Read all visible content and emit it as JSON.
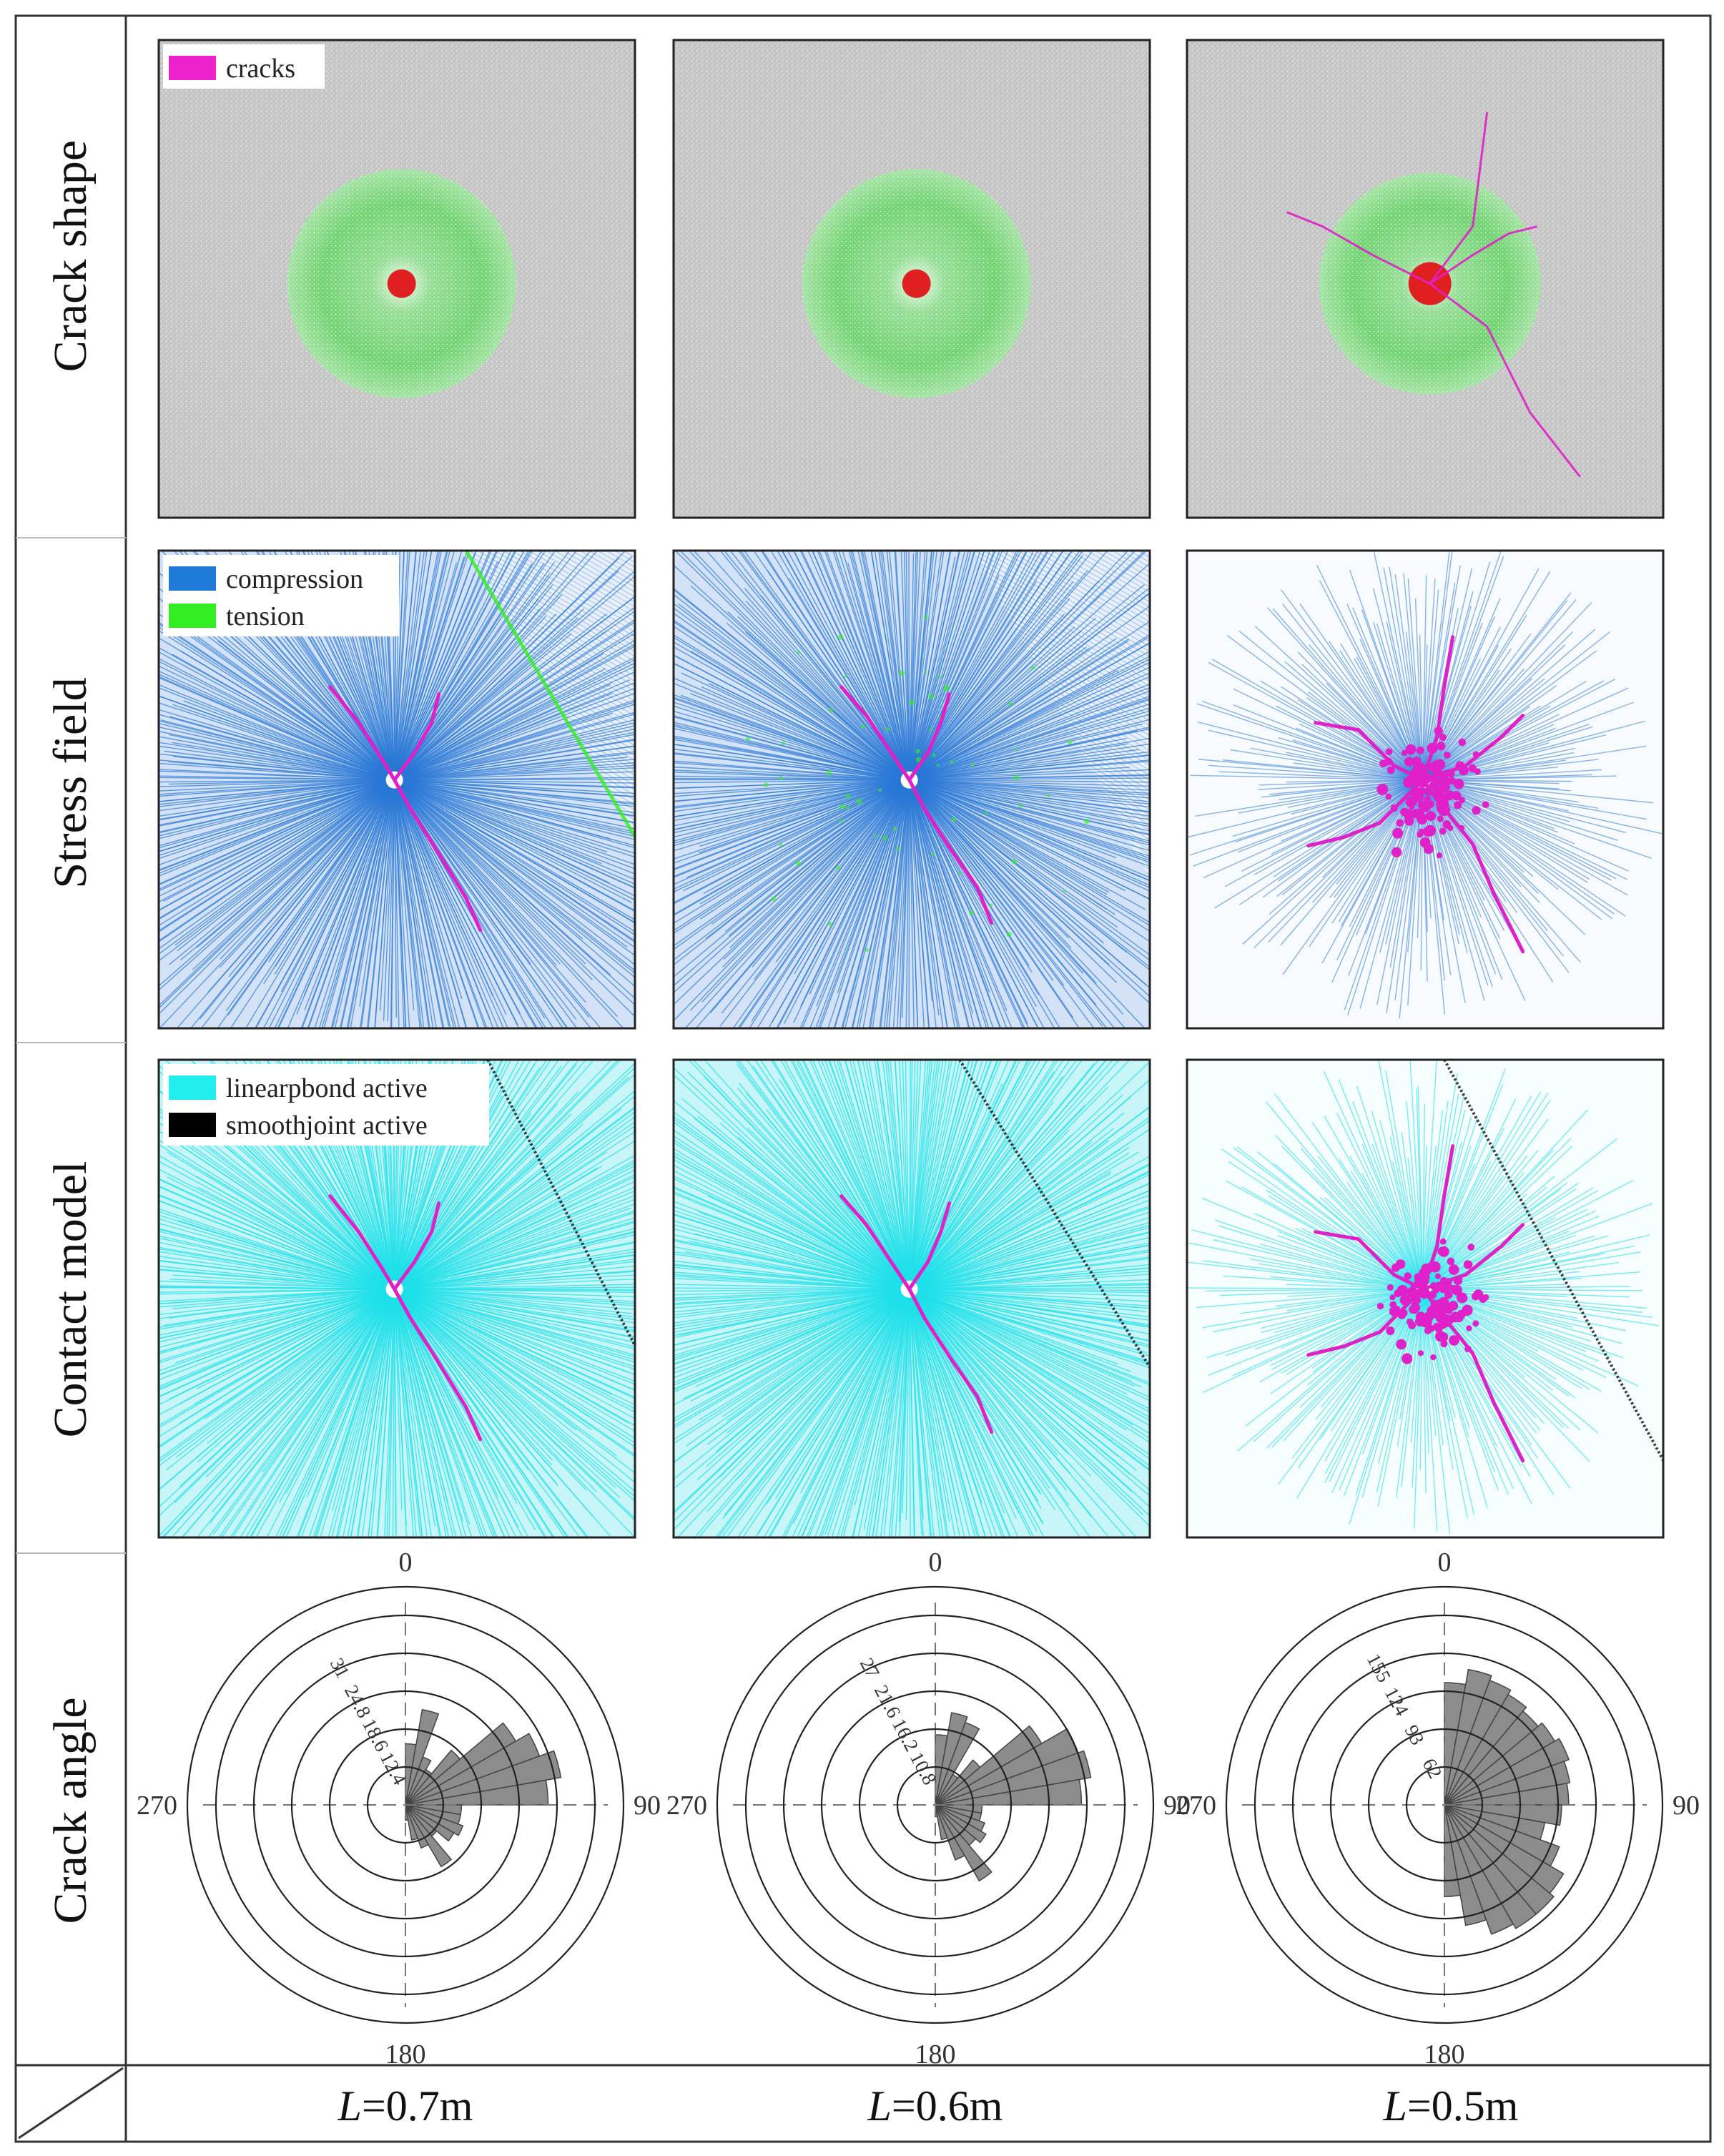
{
  "row_labels": [
    "Crack  shape",
    "Stress field",
    "Contact model",
    "Crack angle"
  ],
  "column_labels": [
    {
      "symbol": "L",
      "value": "=0.7m"
    },
    {
      "symbol": "L",
      "value": "=0.6m"
    },
    {
      "symbol": "L",
      "value": "=0.5m"
    }
  ],
  "legends": {
    "cracks": [
      {
        "label": "cracks",
        "color": "#ee22cc"
      }
    ],
    "stress": [
      {
        "label": "compression",
        "color": "#1f7ad8"
      },
      {
        "label": "tension",
        "color": "#33ee22"
      }
    ],
    "contact": [
      {
        "label": "linearpbond active",
        "color": "#22eeee"
      },
      {
        "label": "smoothjoint active",
        "color": "#000000"
      }
    ]
  },
  "colors": {
    "grain": "#c9c9c9",
    "damage_zone": "#58d45a",
    "crack": "#e020c8",
    "compression": "#2a78d6",
    "tension": "#33ee22",
    "contact": "#1fe0ea",
    "rose_fill": "#8c8c8c"
  },
  "chart_data": [
    {
      "type": "rose",
      "direction_labels": [
        "0",
        "90",
        "180",
        "270"
      ],
      "radial_ticks": [
        "12.4",
        "18.6",
        "24.8",
        "31"
      ],
      "radial_max": 37.2,
      "bin_width_deg": 10,
      "bins": [
        {
          "angle": 5,
          "value": 12
        },
        {
          "angle": 15,
          "value": 19
        },
        {
          "angle": 25,
          "value": 10
        },
        {
          "angle": 35,
          "value": 8
        },
        {
          "angle": 45,
          "value": 14
        },
        {
          "angle": 55,
          "value": 25
        },
        {
          "angle": 65,
          "value": 28
        },
        {
          "angle": 75,
          "value": 31
        },
        {
          "angle": 85,
          "value": 28
        },
        {
          "angle": 95,
          "value": 11
        },
        {
          "angle": 105,
          "value": 11
        },
        {
          "angle": 115,
          "value": 12
        },
        {
          "angle": 125,
          "value": 11
        },
        {
          "angle": 135,
          "value": 8
        },
        {
          "angle": 145,
          "value": 14
        },
        {
          "angle": 155,
          "value": 9
        },
        {
          "angle": 165,
          "value": 7
        },
        {
          "angle": 175,
          "value": 3
        }
      ]
    },
    {
      "type": "rose",
      "direction_labels": [
        "0",
        "90",
        "180",
        "270"
      ],
      "radial_ticks": [
        "10.8",
        "16.2",
        "21.6",
        "27"
      ],
      "radial_max": 32.4,
      "bin_width_deg": 10,
      "bins": [
        {
          "angle": 5,
          "value": 12
        },
        {
          "angle": 15,
          "value": 16
        },
        {
          "angle": 25,
          "value": 15
        },
        {
          "angle": 35,
          "value": 6
        },
        {
          "angle": 45,
          "value": 10
        },
        {
          "angle": 55,
          "value": 21
        },
        {
          "angle": 65,
          "value": 26
        },
        {
          "angle": 75,
          "value": 27
        },
        {
          "angle": 85,
          "value": 25
        },
        {
          "angle": 95,
          "value": 8
        },
        {
          "angle": 105,
          "value": 8
        },
        {
          "angle": 115,
          "value": 9
        },
        {
          "angle": 125,
          "value": 10
        },
        {
          "angle": 135,
          "value": 9
        },
        {
          "angle": 145,
          "value": 15
        },
        {
          "angle": 155,
          "value": 10
        },
        {
          "angle": 165,
          "value": 6
        },
        {
          "angle": 175,
          "value": 2
        }
      ]
    },
    {
      "type": "rose",
      "direction_labels": [
        "0",
        "90",
        "180",
        "270"
      ],
      "radial_ticks": [
        "62",
        "93",
        "124",
        "155"
      ],
      "radial_max": 186,
      "bin_width_deg": 10,
      "bins": [
        {
          "angle": 5,
          "value": 120
        },
        {
          "angle": 15,
          "value": 135
        },
        {
          "angle": 25,
          "value": 130
        },
        {
          "angle": 35,
          "value": 125
        },
        {
          "angle": 45,
          "value": 120
        },
        {
          "angle": 55,
          "value": 125
        },
        {
          "angle": 65,
          "value": 130
        },
        {
          "angle": 75,
          "value": 125
        },
        {
          "angle": 85,
          "value": 122
        },
        {
          "angle": 95,
          "value": 115
        },
        {
          "angle": 105,
          "value": 100
        },
        {
          "angle": 115,
          "value": 120
        },
        {
          "angle": 125,
          "value": 135
        },
        {
          "angle": 135,
          "value": 140
        },
        {
          "angle": 145,
          "value": 140
        },
        {
          "angle": 155,
          "value": 135
        },
        {
          "angle": 165,
          "value": 120
        },
        {
          "angle": 175,
          "value": 90
        }
      ]
    }
  ]
}
